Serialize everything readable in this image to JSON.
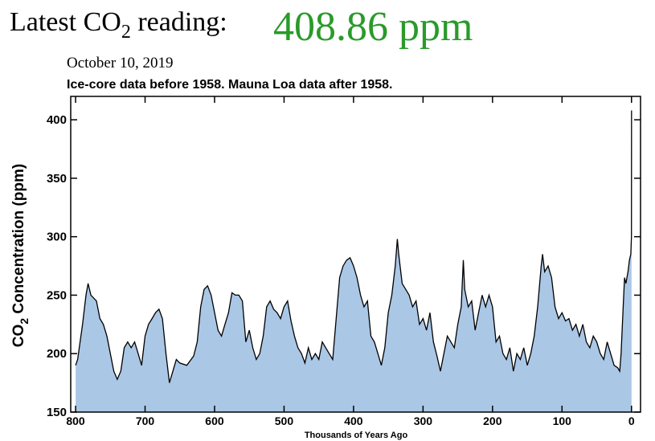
{
  "header": {
    "label_prefix": "Latest CO",
    "label_sub": "2",
    "label_suffix": " reading:",
    "reading": "408.86 ppm",
    "date": "October 10, 2019"
  },
  "chart_data": {
    "type": "area",
    "title": "Ice-core data before 1958. Mauna Loa data after 1958.",
    "y_label_prefix": "CO",
    "y_label_sub": "2",
    "y_label_suffix": " Concentration (ppm)",
    "x_label": "Thousands of Years Ago",
    "color": "#aac7e6",
    "line_color": "#000000",
    "xlim": [
      807,
      -13
    ],
    "ylim": [
      150,
      420
    ],
    "xticks": [
      800,
      700,
      600,
      500,
      400,
      300,
      200,
      100,
      0
    ],
    "yticks": [
      150,
      200,
      250,
      300,
      350,
      400
    ],
    "x": [
      800,
      797,
      790,
      785,
      782,
      778,
      770,
      765,
      760,
      755,
      750,
      745,
      740,
      735,
      730,
      725,
      720,
      715,
      710,
      705,
      700,
      695,
      690,
      685,
      680,
      675,
      670,
      665,
      660,
      655,
      650,
      640,
      630,
      625,
      620,
      615,
      610,
      605,
      600,
      595,
      590,
      585,
      580,
      575,
      570,
      565,
      560,
      555,
      550,
      545,
      540,
      535,
      530,
      525,
      520,
      515,
      510,
      505,
      500,
      495,
      490,
      485,
      480,
      475,
      470,
      465,
      460,
      455,
      450,
      445,
      440,
      435,
      430,
      425,
      420,
      415,
      410,
      405,
      400,
      395,
      390,
      385,
      380,
      375,
      370,
      365,
      360,
      355,
      350,
      345,
      340,
      337,
      335,
      330,
      325,
      320,
      315,
      310,
      305,
      300,
      295,
      290,
      285,
      280,
      275,
      270,
      265,
      260,
      255,
      250,
      245,
      242,
      240,
      235,
      230,
      225,
      220,
      215,
      210,
      205,
      200,
      195,
      190,
      185,
      180,
      175,
      170,
      165,
      160,
      155,
      150,
      145,
      140,
      135,
      130,
      128,
      125,
      120,
      115,
      110,
      105,
      100,
      95,
      90,
      85,
      80,
      75,
      70,
      65,
      60,
      55,
      50,
      45,
      40,
      35,
      30,
      25,
      20,
      17,
      15,
      12,
      10,
      8,
      5,
      3,
      1,
      0.05,
      0
    ],
    "values": [
      190,
      195,
      225,
      250,
      260,
      250,
      245,
      230,
      225,
      215,
      200,
      185,
      178,
      185,
      205,
      210,
      205,
      210,
      200,
      190,
      215,
      225,
      230,
      235,
      238,
      230,
      200,
      175,
      185,
      195,
      192,
      190,
      198,
      210,
      240,
      255,
      258,
      250,
      235,
      220,
      215,
      225,
      235,
      252,
      250,
      250,
      245,
      210,
      220,
      205,
      195,
      200,
      215,
      240,
      245,
      238,
      235,
      230,
      240,
      245,
      228,
      215,
      205,
      200,
      192,
      205,
      195,
      200,
      195,
      210,
      205,
      200,
      195,
      230,
      265,
      275,
      280,
      282,
      275,
      265,
      250,
      240,
      245,
      215,
      210,
      200,
      190,
      205,
      235,
      250,
      275,
      298,
      285,
      260,
      255,
      250,
      240,
      245,
      225,
      230,
      220,
      235,
      210,
      198,
      185,
      200,
      215,
      210,
      205,
      225,
      240,
      280,
      255,
      240,
      245,
      220,
      235,
      250,
      240,
      250,
      240,
      210,
      215,
      200,
      195,
      205,
      185,
      200,
      195,
      205,
      190,
      200,
      215,
      240,
      275,
      285,
      270,
      275,
      265,
      240,
      230,
      235,
      228,
      230,
      220,
      225,
      215,
      225,
      210,
      205,
      215,
      210,
      200,
      195,
      210,
      200,
      190,
      188,
      185,
      200,
      240,
      265,
      260,
      270,
      280,
      285,
      300,
      408
    ]
  }
}
